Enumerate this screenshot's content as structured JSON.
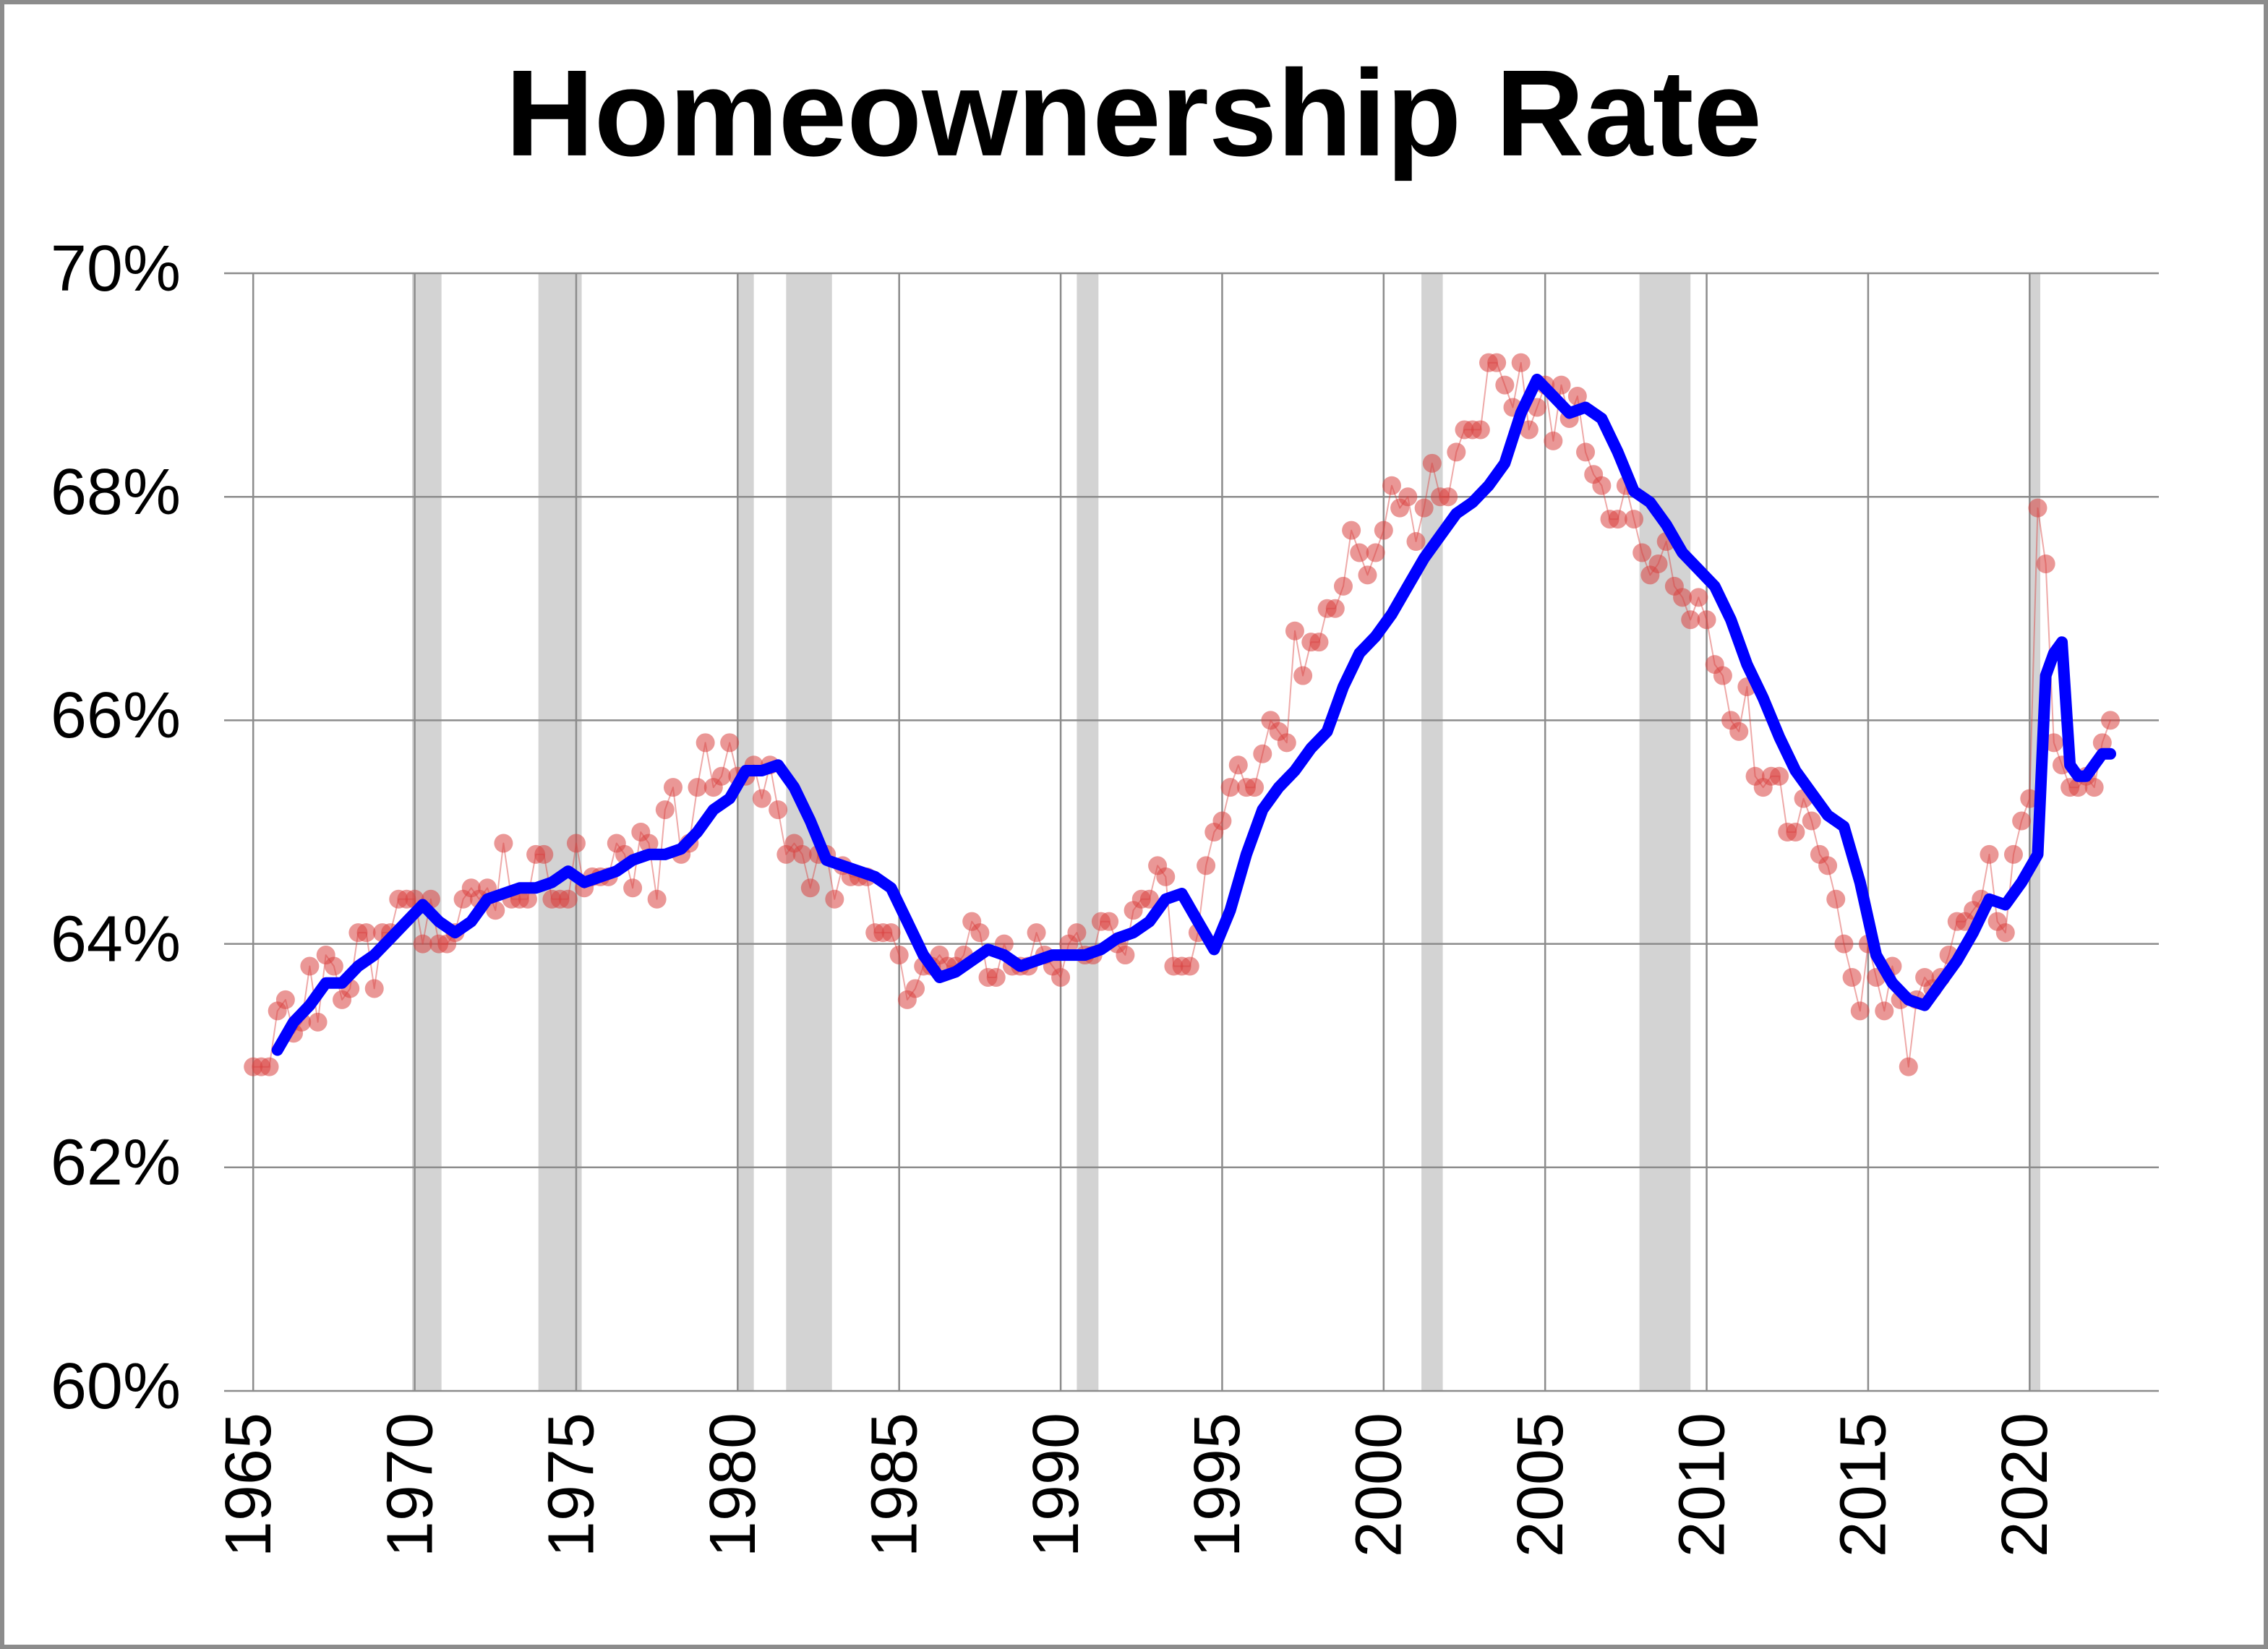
{
  "chart_data": {
    "type": "line",
    "title": "Homeownership Rate",
    "xlim": [
      1964.1,
      2024
    ],
    "xticks": [
      1965,
      1970,
      1975,
      1980,
      1985,
      1990,
      1995,
      2000,
      2005,
      2010,
      2015,
      2020
    ],
    "ylim": [
      60,
      70
    ],
    "yticks": [
      {
        "value": 60,
        "label": "60%"
      },
      {
        "value": 62,
        "label": "62%"
      },
      {
        "value": 64,
        "label": "64%"
      },
      {
        "value": 66,
        "label": "66%"
      },
      {
        "value": 68,
        "label": "68%"
      },
      {
        "value": 70,
        "label": "70%"
      }
    ],
    "grid": true,
    "recession_color": "#d3d3d3",
    "recessions": [
      [
        1969.92,
        1970.83
      ],
      [
        1973.83,
        1975.17
      ],
      [
        1980.0,
        1980.5
      ],
      [
        1981.5,
        1982.92
      ],
      [
        1990.5,
        1991.17
      ],
      [
        2001.17,
        2001.83
      ],
      [
        2007.92,
        2009.5
      ],
      [
        2020.0,
        2020.33
      ]
    ],
    "series": [
      {
        "color": "#d9413f",
        "markers": true,
        "x": [
          1965,
          1965.25,
          1965.5,
          1965.75,
          1966,
          1966.25,
          1966.5,
          1966.75,
          1967,
          1967.25,
          1967.5,
          1967.75,
          1968,
          1968.25,
          1968.5,
          1968.75,
          1969,
          1969.25,
          1969.5,
          1969.75,
          1970,
          1970.25,
          1970.5,
          1970.75,
          1971,
          1971.25,
          1971.5,
          1971.75,
          1972,
          1972.25,
          1972.5,
          1972.75,
          1973,
          1973.25,
          1973.5,
          1973.75,
          1974,
          1974.25,
          1974.5,
          1974.75,
          1975,
          1975.25,
          1975.5,
          1975.75,
          1976,
          1976.25,
          1976.5,
          1976.75,
          1977,
          1977.25,
          1977.5,
          1977.75,
          1978,
          1978.25,
          1978.5,
          1978.75,
          1979,
          1979.25,
          1979.5,
          1979.75,
          1980,
          1980.25,
          1980.5,
          1980.75,
          1981,
          1981.25,
          1981.5,
          1981.75,
          1982,
          1982.25,
          1982.5,
          1982.75,
          1983,
          1983.25,
          1983.5,
          1983.75,
          1984,
          1984.25,
          1984.5,
          1984.75,
          1985,
          1985.25,
          1985.5,
          1985.75,
          1986,
          1986.25,
          1986.5,
          1986.75,
          1987,
          1987.25,
          1987.5,
          1987.75,
          1988,
          1988.25,
          1988.5,
          1988.75,
          1989,
          1989.25,
          1989.5,
          1989.75,
          1990,
          1990.25,
          1990.5,
          1990.75,
          1991,
          1991.25,
          1991.5,
          1991.75,
          1992,
          1992.25,
          1992.5,
          1992.75,
          1993,
          1993.25,
          1993.5,
          1993.75,
          1994,
          1994.25,
          1994.5,
          1994.75,
          1995,
          1995.25,
          1995.5,
          1995.75,
          1996,
          1996.25,
          1996.5,
          1996.75,
          1997,
          1997.25,
          1997.5,
          1997.75,
          1998,
          1998.25,
          1998.5,
          1998.75,
          1999,
          1999.25,
          1999.5,
          1999.75,
          2000,
          2000.25,
          2000.5,
          2000.75,
          2001,
          2001.25,
          2001.5,
          2001.75,
          2002,
          2002.25,
          2002.5,
          2002.75,
          2003,
          2003.25,
          2003.5,
          2003.75,
          2004,
          2004.25,
          2004.5,
          2004.75,
          2005,
          2005.25,
          2005.5,
          2005.75,
          2006,
          2006.25,
          2006.5,
          2006.75,
          2007,
          2007.25,
          2007.5,
          2007.75,
          2008,
          2008.25,
          2008.5,
          2008.75,
          2009,
          2009.25,
          2009.5,
          2009.75,
          2010,
          2010.25,
          2010.5,
          2010.75,
          2011,
          2011.25,
          2011.5,
          2011.75,
          2012,
          2012.25,
          2012.5,
          2012.75,
          2013,
          2013.25,
          2013.5,
          2013.75,
          2014,
          2014.25,
          2014.5,
          2014.75,
          2015,
          2015.25,
          2015.5,
          2015.75,
          2016,
          2016.25,
          2016.5,
          2016.75,
          2017,
          2017.25,
          2017.5,
          2017.75,
          2018,
          2018.25,
          2018.5,
          2018.75,
          2019,
          2019.25,
          2019.5,
          2019.75,
          2020,
          2020.25,
          2020.5,
          2020.75,
          2021,
          2021.25,
          2021.5,
          2021.75,
          2022,
          2022.25,
          2022.5
        ],
        "values": [
          62.9,
          62.9,
          62.9,
          63.4,
          63.5,
          63.2,
          63.3,
          63.8,
          63.3,
          63.9,
          63.8,
          63.5,
          63.6,
          64.1,
          64.1,
          63.6,
          64.1,
          64.1,
          64.4,
          64.4,
          64.4,
          64.0,
          64.4,
          64.0,
          64.0,
          64.1,
          64.4,
          64.5,
          64.4,
          64.5,
          64.3,
          64.9,
          64.4,
          64.4,
          64.4,
          64.8,
          64.8,
          64.4,
          64.4,
          64.4,
          64.9,
          64.5,
          64.6,
          64.6,
          64.6,
          64.9,
          64.8,
          64.5,
          65.0,
          64.9,
          64.4,
          65.2,
          65.4,
          64.8,
          64.9,
          65.4,
          65.8,
          65.4,
          65.5,
          65.8,
          65.5,
          65.5,
          65.6,
          65.3,
          65.6,
          65.2,
          64.8,
          64.9,
          64.8,
          64.5,
          64.8,
          64.8,
          64.4,
          64.7,
          64.6,
          64.6,
          64.6,
          64.1,
          64.1,
          64.1,
          63.9,
          63.5,
          63.6,
          63.8,
          63.8,
          63.9,
          63.8,
          63.8,
          63.9,
          64.2,
          64.1,
          63.7,
          63.7,
          64.0,
          63.8,
          63.8,
          63.8,
          64.1,
          63.9,
          63.8,
          63.7,
          64.0,
          64.1,
          63.9,
          63.9,
          64.2,
          64.2,
          64.0,
          63.9,
          64.3,
          64.4,
          64.4,
          64.7,
          64.6,
          63.8,
          63.8,
          63.8,
          64.1,
          64.7,
          65.0,
          65.1,
          65.4,
          65.6,
          65.4,
          65.4,
          65.7,
          66.0,
          65.9,
          65.8,
          66.8,
          66.4,
          66.7,
          66.7,
          67.0,
          67.0,
          67.2,
          67.7,
          67.5,
          67.3,
          67.5,
          67.7,
          68.1,
          67.9,
          68.0,
          67.6,
          67.9,
          68.3,
          68.0,
          68.0,
          68.4,
          68.6,
          68.6,
          68.6,
          69.2,
          69.2,
          69.0,
          68.8,
          69.2,
          68.6,
          68.8,
          69.0,
          68.5,
          69.0,
          68.7,
          68.9,
          68.4,
          68.2,
          68.1,
          67.8,
          67.8,
          68.1,
          67.8,
          67.5,
          67.3,
          67.4,
          67.6,
          67.2,
          67.1,
          66.9,
          67.1,
          66.9,
          66.5,
          66.4,
          66.0,
          65.9,
          66.3,
          65.5,
          65.4,
          65.5,
          65.5,
          65.0,
          65.0,
          65.3,
          65.1,
          64.8,
          64.7,
          64.4,
          64.0,
          63.7,
          63.4,
          64.0,
          63.7,
          63.4,
          63.8,
          63.5,
          62.9,
          63.5,
          63.7,
          63.6,
          63.7,
          63.9,
          64.2,
          64.2,
          64.3,
          64.4,
          64.8,
          64.2,
          64.1,
          64.8,
          65.1,
          65.3,
          67.9,
          67.4,
          65.8,
          65.6,
          65.4,
          65.4,
          65.5,
          65.4,
          65.8,
          66.0
        ]
      },
      {
        "color": "#0000ff",
        "markers": false,
        "x": [
          1965.75,
          1966.25,
          1966.75,
          1967.25,
          1967.75,
          1968.25,
          1968.75,
          1969.25,
          1969.75,
          1970.25,
          1970.75,
          1971.25,
          1971.75,
          1972.25,
          1972.75,
          1973.25,
          1973.75,
          1974.25,
          1974.75,
          1975.25,
          1975.75,
          1976.25,
          1976.75,
          1977.25,
          1977.75,
          1978.25,
          1978.75,
          1979.25,
          1979.75,
          1980.25,
          1980.75,
          1981.25,
          1981.75,
          1982.25,
          1982.75,
          1983.25,
          1983.75,
          1984.25,
          1984.75,
          1985.25,
          1985.75,
          1986.25,
          1986.75,
          1987.25,
          1987.75,
          1988.25,
          1988.75,
          1989.25,
          1989.75,
          1990.25,
          1990.75,
          1991.25,
          1991.75,
          1992.25,
          1992.75,
          1993.25,
          1993.75,
          1994.25,
          1994.75,
          1995.25,
          1995.75,
          1996.25,
          1996.75,
          1997.25,
          1997.75,
          1998.25,
          1998.75,
          1999.25,
          1999.75,
          2000.25,
          2000.75,
          2001.25,
          2001.75,
          2002.25,
          2002.75,
          2003.25,
          2003.75,
          2004.25,
          2004.75,
          2005.25,
          2005.75,
          2006.25,
          2006.75,
          2007.25,
          2007.75,
          2008.25,
          2008.75,
          2009.25,
          2009.75,
          2010.25,
          2010.75,
          2011.25,
          2011.75,
          2012.25,
          2012.75,
          2013.25,
          2013.75,
          2014.25,
          2014.75,
          2015.25,
          2015.75,
          2016.25,
          2016.75,
          2017.25,
          2017.75,
          2018.25,
          2018.75,
          2019.25,
          2019.75,
          2020.25,
          2020.5,
          2020.75,
          2021,
          2021.25,
          2021.5,
          2021.75,
          2022,
          2022.25,
          2022.5
        ],
        "values": [
          63.05,
          63.3,
          63.45,
          63.65,
          63.65,
          63.8,
          63.9,
          64.05,
          64.2,
          64.35,
          64.2,
          64.1,
          64.2,
          64.4,
          64.45,
          64.5,
          64.5,
          64.55,
          64.65,
          64.55,
          64.6,
          64.65,
          64.75,
          64.8,
          64.8,
          64.85,
          65.0,
          65.2,
          65.3,
          65.55,
          65.55,
          65.6,
          65.4,
          65.1,
          64.75,
          64.7,
          64.65,
          64.6,
          64.5,
          64.2,
          63.9,
          63.7,
          63.75,
          63.85,
          63.95,
          63.9,
          63.8,
          63.85,
          63.9,
          63.9,
          63.9,
          63.95,
          64.05,
          64.1,
          64.2,
          64.4,
          64.45,
          64.2,
          63.95,
          64.3,
          64.8,
          65.2,
          65.4,
          65.55,
          65.75,
          65.9,
          66.3,
          66.6,
          66.75,
          66.95,
          67.2,
          67.45,
          67.65,
          67.85,
          67.95,
          68.1,
          68.3,
          68.75,
          69.05,
          68.9,
          68.75,
          68.8,
          68.7,
          68.4,
          68.05,
          67.95,
          67.75,
          67.5,
          67.35,
          67.2,
          66.9,
          66.5,
          66.2,
          65.85,
          65.55,
          65.35,
          65.15,
          65.05,
          64.55,
          63.9,
          63.65,
          63.5,
          63.45,
          63.65,
          63.85,
          64.1,
          64.4,
          64.35,
          64.55,
          64.8,
          66.4,
          66.6,
          66.7,
          65.6,
          65.5,
          65.5,
          65.6,
          65.7,
          65.7
        ]
      }
    ]
  }
}
